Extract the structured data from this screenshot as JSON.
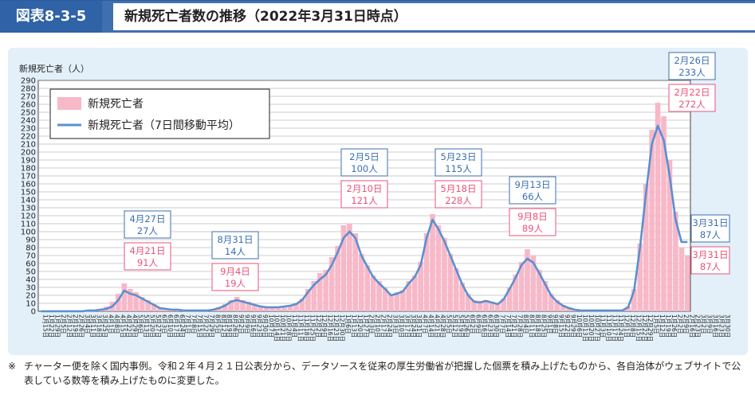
{
  "header": {
    "figure_number": "図表8-3-5",
    "title": "新規死亡者数の推移（2022年3月31日時点）"
  },
  "note": {
    "mark": "※",
    "text": "チャーター便を除く国内事例。令和２年４月２１日公表分から、データソースを従来の厚生労働省が把握した個票を積み上げたものから、各自治体がウェブサイトで公表している数等を積み上げたものに変更した。"
  },
  "colors": {
    "bar": "#f7b8c8",
    "line": "#5b8fd0",
    "pink_text": "#e8537a",
    "blue_text": "#3c6fb0"
  },
  "chart_data": {
    "type": "bar",
    "ylabel": "新規死亡者（人）",
    "ylim": [
      0,
      290
    ],
    "ytick_step": 10,
    "grid": true,
    "legend_position": "top-left",
    "legend": [
      {
        "label": "新規死亡者",
        "kind": "bar"
      },
      {
        "label": "新規死亡者（7日間移動平均）",
        "kind": "line"
      }
    ],
    "x_labels": [
      "1月15日",
      "1月22日",
      "1月29日",
      "2月5日",
      "2月12日",
      "2月19日",
      "2月26日",
      "3月4日",
      "3月11日",
      "3月18日",
      "3月25日",
      "4月1日",
      "4月8日",
      "4月15日",
      "4月22日",
      "4月29日",
      "5月6日",
      "5月13日",
      "5月20日",
      "5月27日",
      "6月3日",
      "6月10日",
      "6月17日",
      "6月24日",
      "7月1日",
      "7月8日",
      "7月15日",
      "7月22日",
      "7月29日",
      "8月5日",
      "8月12日",
      "8月19日",
      "8月26日",
      "9月2日",
      "9月9日",
      "9月16日",
      "9月23日",
      "9月30日",
      "10月7日",
      "10月14日",
      "10月21日",
      "10月28日",
      "11月4日",
      "11月11日",
      "11月18日",
      "11月25日",
      "12月2日",
      "12月9日",
      "12月16日",
      "12月23日",
      "12月30日",
      "1月6日",
      "1月13日",
      "1月20日",
      "1月27日",
      "2月3日",
      "2月10日",
      "2月17日",
      "2月24日",
      "3月3日",
      "3月10日",
      "3月17日",
      "3月24日",
      "3月31日",
      "4月7日",
      "4月14日",
      "4月21日",
      "4月28日",
      "5月5日",
      "5月12日",
      "5月19日",
      "5月26日",
      "6月2日",
      "6月9日",
      "6月16日",
      "6月23日",
      "6月30日",
      "7月7日",
      "7月14日",
      "7月21日",
      "7月28日",
      "8月4日",
      "8月11日",
      "8月18日",
      "8月25日",
      "9月1日",
      "9月8日",
      "9月15日",
      "9月22日",
      "9月29日",
      "10月6日",
      "10月13日",
      "10月20日",
      "10月27日",
      "11月3日",
      "11月10日",
      "11月17日",
      "11月24日",
      "12月1日",
      "12月8日",
      "12月15日",
      "12月22日",
      "12月29日",
      "1月5日",
      "1月12日",
      "1月19日",
      "1月26日",
      "2月2日",
      "2月9日",
      "2月16日",
      "2月23日",
      "3月2日",
      "3月9日",
      "3月16日",
      "3月23日",
      "3月30日"
    ],
    "series": [
      {
        "name": "新規死亡者",
        "values": [
          0,
          0,
          0,
          0,
          0,
          0,
          0,
          1,
          2,
          2,
          3,
          6,
          12,
          22,
          35,
          28,
          24,
          18,
          14,
          9,
          5,
          3,
          2,
          2,
          1,
          1,
          1,
          1,
          1,
          2,
          5,
          9,
          14,
          18,
          14,
          12,
          8,
          6,
          5,
          5,
          5,
          6,
          8,
          10,
          16,
          28,
          38,
          48,
          52,
          68,
          82,
          108,
          110,
          98,
          72,
          58,
          45,
          38,
          30,
          22,
          24,
          26,
          38,
          45,
          62,
          98,
          122,
          108,
          92,
          72,
          54,
          36,
          22,
          14,
          13,
          14,
          12,
          10,
          16,
          30,
          46,
          62,
          78,
          70,
          52,
          38,
          22,
          14,
          8,
          5,
          3,
          2,
          2,
          1,
          1,
          1,
          1,
          1,
          1,
          6,
          28,
          85,
          160,
          228,
          262,
          245,
          190,
          125,
          80,
          70
        ]
      },
      {
        "name": "新規死亡者（7日間移動平均）",
        "values": [
          0,
          0,
          0,
          0,
          0,
          0,
          0,
          0,
          1,
          1,
          2,
          3,
          6,
          14,
          26,
          22,
          20,
          16,
          12,
          8,
          4,
          3,
          2,
          2,
          1,
          1,
          1,
          1,
          1,
          2,
          4,
          7,
          12,
          14,
          12,
          10,
          8,
          6,
          5,
          5,
          5,
          6,
          7,
          9,
          14,
          24,
          33,
          40,
          46,
          58,
          74,
          92,
          100,
          92,
          70,
          56,
          43,
          35,
          28,
          20,
          22,
          25,
          35,
          43,
          58,
          92,
          115,
          103,
          88,
          70,
          52,
          34,
          20,
          12,
          11,
          13,
          11,
          9,
          15,
          28,
          42,
          58,
          66,
          61,
          48,
          34,
          20,
          12,
          7,
          4,
          2,
          1,
          1,
          1,
          1,
          1,
          1,
          1,
          1,
          5,
          26,
          80,
          148,
          210,
          233,
          215,
          170,
          115,
          87,
          87
        ]
      }
    ],
    "annotations": [
      {
        "kind": "blue",
        "date": "4月27日",
        "value": "27人"
      },
      {
        "kind": "pink",
        "date": "4月21日",
        "value": "91人"
      },
      {
        "kind": "blue",
        "date": "8月31日",
        "value": "14人"
      },
      {
        "kind": "pink",
        "date": "9月4日",
        "value": "19人"
      },
      {
        "kind": "blue",
        "date": "2月5日",
        "value": "100人"
      },
      {
        "kind": "pink",
        "date": "2月10日",
        "value": "121人"
      },
      {
        "kind": "blue",
        "date": "5月23日",
        "value": "115人"
      },
      {
        "kind": "pink",
        "date": "5月18日",
        "value": "228人"
      },
      {
        "kind": "blue",
        "date": "9月13日",
        "value": "66人"
      },
      {
        "kind": "pink",
        "date": "9月8日",
        "value": "89人"
      },
      {
        "kind": "blue",
        "date": "2月26日",
        "value": "233人"
      },
      {
        "kind": "pink",
        "date": "2月22日",
        "value": "272人"
      },
      {
        "kind": "blue",
        "date": "3月31日",
        "value": "87人"
      },
      {
        "kind": "pink",
        "date": "3月31日",
        "value": "87人"
      }
    ]
  }
}
